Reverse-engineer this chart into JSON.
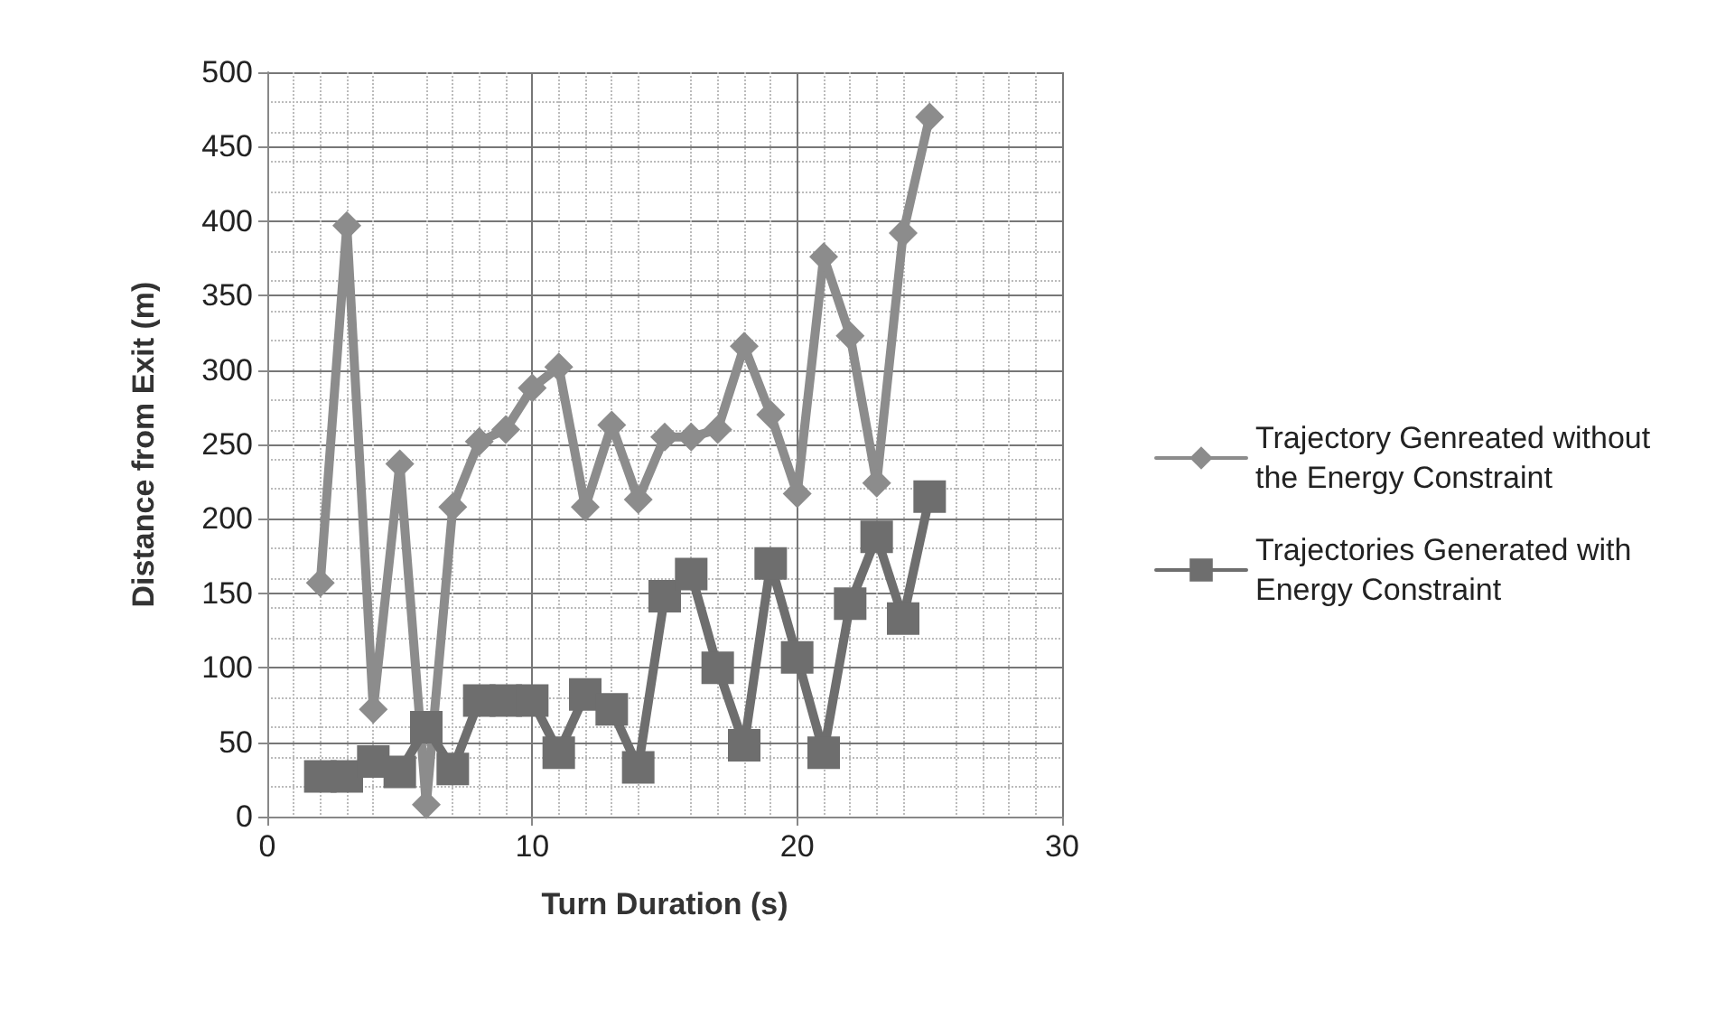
{
  "chart_data": {
    "type": "line",
    "xlabel": "Turn Duration (s)",
    "ylabel": "Distance from Exit (m)",
    "xlim": [
      0,
      30
    ],
    "xticks": [
      0,
      10,
      20,
      30
    ],
    "ylim": [
      0,
      500
    ],
    "yticks": [
      0,
      50,
      100,
      150,
      200,
      250,
      300,
      350,
      400,
      450,
      500
    ],
    "grid": true,
    "legend": "right",
    "line_style": "solid",
    "series": [
      {
        "name": "Trajectory Genreated without the Energy Constraint",
        "color": "#8c8c8c",
        "marker": "diamond",
        "x": [
          2,
          3,
          4,
          5,
          6,
          7,
          8,
          9,
          10,
          11,
          12,
          13,
          14,
          15,
          16,
          17,
          18,
          19,
          20,
          21,
          22,
          23,
          24,
          25
        ],
        "values": [
          157,
          397,
          72,
          237,
          8,
          208,
          252,
          260,
          288,
          302,
          208,
          263,
          213,
          255,
          255,
          260,
          316,
          270,
          217,
          376,
          323,
          224,
          392,
          470
        ]
      },
      {
        "name": "Trajectories Generated with Energy Constraint",
        "color": "#6e6e6e",
        "marker": "square",
        "x": [
          2,
          3,
          4,
          5,
          6,
          7,
          8,
          9,
          10,
          11,
          12,
          13,
          14,
          15,
          16,
          17,
          18,
          19,
          20,
          21,
          22,
          23,
          24,
          25
        ],
        "values": [
          27,
          27,
          37,
          30,
          60,
          32,
          78,
          78,
          78,
          43,
          82,
          72,
          33,
          148,
          163,
          100,
          48,
          170,
          107,
          43,
          143,
          188,
          133,
          215
        ]
      }
    ]
  }
}
